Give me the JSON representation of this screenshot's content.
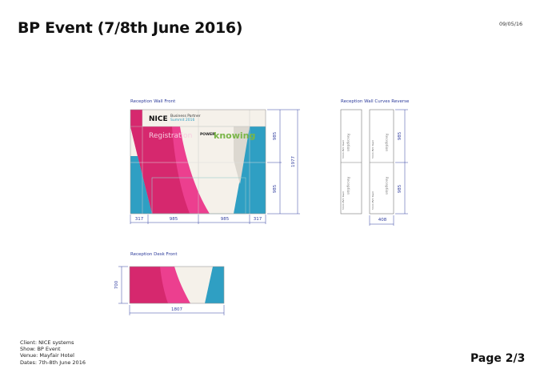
{
  "header": {
    "title": "BP Event  (7/8th June 2016)",
    "date": "09/05/16"
  },
  "wall_front": {
    "caption": "Reception Wall Front",
    "brand_logo": "NICE",
    "brand_line1": "Business Partner",
    "brand_line2": "Summit 2016",
    "registration": "Registration",
    "power_logo_prefix": "POWER",
    "power_logo_word": "knowing",
    "width_dims": [
      "317",
      "985",
      "985",
      "317"
    ],
    "height_dims": [
      "985",
      "985"
    ],
    "total_height": "1977"
  },
  "wall_curves": {
    "caption": "Reception Wall Curves Reverse",
    "panel_note": "5mm PVC foam",
    "mirrored_text": "Reception",
    "height_dims": [
      "985",
      "985"
    ],
    "width_dim": "408"
  },
  "desk": {
    "caption": "Reception Desk Front",
    "height_dim": "700",
    "width_dim": "1807"
  },
  "footer": {
    "client": "Client: NICE systems",
    "show": "Show: BP Event",
    "venue": "Venue: Mayfair Hotel",
    "dates": "Dates: 7th-8th June 2016",
    "page": "Page 2/3"
  },
  "colors": {
    "magenta": "#d6286e",
    "pink": "#ec3f8f",
    "blue": "#2f9fc3",
    "cream": "#f5f1ea",
    "dim": "#3340a0"
  }
}
